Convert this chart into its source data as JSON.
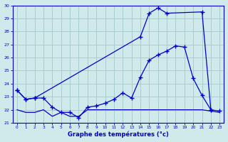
{
  "xlabel": "Graphe des températures (°c)",
  "bg_color": "#d0eaec",
  "grid_color": "#aacccc",
  "line_color": "#0000cc",
  "x_ticks": [
    0,
    1,
    2,
    3,
    4,
    5,
    6,
    7,
    8,
    9,
    10,
    11,
    12,
    13,
    14,
    15,
    16,
    17,
    18,
    19,
    20,
    21,
    22,
    23
  ],
  "ylim": [
    21,
    30
  ],
  "xlim": [
    -0.5,
    23.5
  ],
  "yticks": [
    21,
    22,
    23,
    24,
    25,
    26,
    27,
    28,
    29,
    30
  ],
  "line1_x": [
    0,
    1,
    2,
    14,
    15,
    16,
    17,
    21,
    22
  ],
  "line1_y": [
    23.5,
    22.8,
    22.9,
    27.6,
    29.4,
    29.8,
    29.4,
    29.5,
    22.0
  ],
  "line2_x": [
    0,
    1,
    2,
    3,
    4,
    5,
    6,
    7,
    8,
    9,
    10,
    11,
    12,
    13,
    14,
    15,
    16,
    17,
    18,
    19,
    20,
    21,
    22,
    23
  ],
  "line2_y": [
    23.5,
    22.8,
    22.9,
    22.9,
    22.2,
    21.8,
    21.8,
    21.4,
    22.2,
    22.3,
    22.5,
    22.8,
    23.3,
    22.9,
    24.5,
    25.8,
    26.2,
    26.5,
    26.9,
    26.8,
    24.4,
    23.1,
    22.0,
    21.9
  ],
  "line3_x": [
    0,
    1,
    2,
    3,
    4,
    5,
    6,
    7,
    8,
    9,
    10,
    11,
    12,
    13,
    14,
    15,
    16,
    17,
    18,
    19,
    20,
    21,
    22,
    23
  ],
  "line3_y": [
    22.0,
    21.8,
    21.8,
    22.0,
    21.5,
    21.8,
    21.5,
    21.5,
    22.0,
    22.0,
    22.0,
    22.0,
    22.0,
    22.0,
    22.0,
    22.0,
    22.0,
    22.0,
    22.0,
    22.0,
    22.0,
    22.0,
    21.9,
    21.8
  ]
}
